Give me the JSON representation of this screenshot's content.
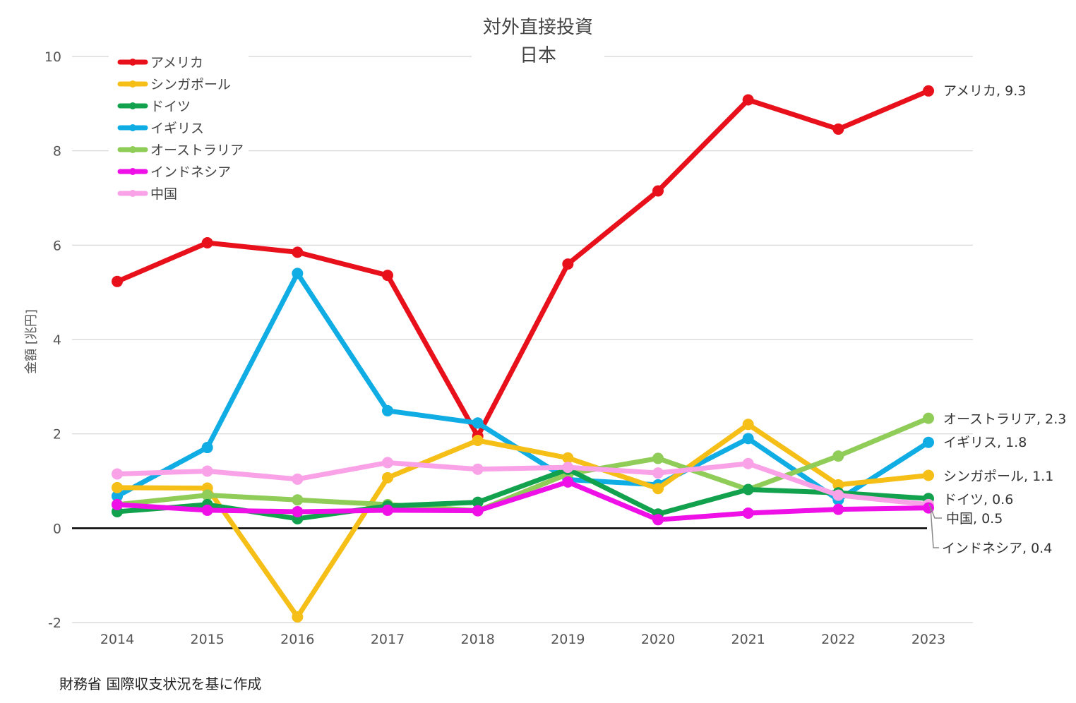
{
  "chart_data": {
    "type": "line",
    "title": "対外直接投資",
    "subtitle": "日本",
    "xlabel": "",
    "ylabel": "金額 [兆円]",
    "ylim": [
      -2,
      10
    ],
    "yticks": [
      -2,
      0,
      2,
      4,
      6,
      8,
      10
    ],
    "grid": true,
    "legend_position": "top-left",
    "categories": [
      "2014",
      "2015",
      "2016",
      "2017",
      "2018",
      "2019",
      "2020",
      "2021",
      "2022",
      "2023"
    ],
    "series": [
      {
        "name": "アメリカ",
        "color": "#e8101a",
        "values": [
          5.23,
          6.05,
          5.85,
          5.36,
          1.95,
          5.6,
          7.15,
          9.08,
          8.46,
          9.27
        ],
        "end_label": "アメリカ, 9.3"
      },
      {
        "name": "シンガポール",
        "color": "#f5bf17",
        "values": [
          0.86,
          0.85,
          -1.88,
          1.07,
          1.86,
          1.49,
          0.84,
          2.2,
          0.92,
          1.12
        ],
        "end_label": "シンガポール, 1.1"
      },
      {
        "name": "ドイツ",
        "color": "#12a24e",
        "values": [
          0.35,
          0.5,
          0.2,
          0.47,
          0.55,
          1.25,
          0.3,
          0.82,
          0.75,
          0.63
        ],
        "end_label": "ドイツ, 0.6"
      },
      {
        "name": "イギリス",
        "color": "#10ace4",
        "values": [
          0.68,
          1.71,
          5.4,
          2.49,
          2.23,
          1.03,
          0.92,
          1.9,
          0.6,
          1.82
        ],
        "end_label": "イギリス, 1.8"
      },
      {
        "name": "オーストラリア",
        "color": "#8fcc58",
        "values": [
          0.5,
          0.7,
          0.6,
          0.5,
          0.37,
          1.15,
          1.48,
          0.82,
          1.53,
          2.33
        ],
        "end_label": "オーストラリア, 2.3"
      },
      {
        "name": "インドネシア",
        "color": "#ee10e6",
        "values": [
          0.5,
          0.38,
          0.35,
          0.38,
          0.37,
          0.98,
          0.18,
          0.32,
          0.4,
          0.43
        ],
        "end_label": "インドネシア, 0.4"
      },
      {
        "name": "中国",
        "color": "#f9a2e8",
        "values": [
          1.15,
          1.21,
          1.04,
          1.39,
          1.25,
          1.29,
          1.17,
          1.37,
          0.7,
          0.5
        ],
        "end_label": "中国, 0.5"
      }
    ],
    "source": "財務省 国際収支状況を基に作成"
  }
}
